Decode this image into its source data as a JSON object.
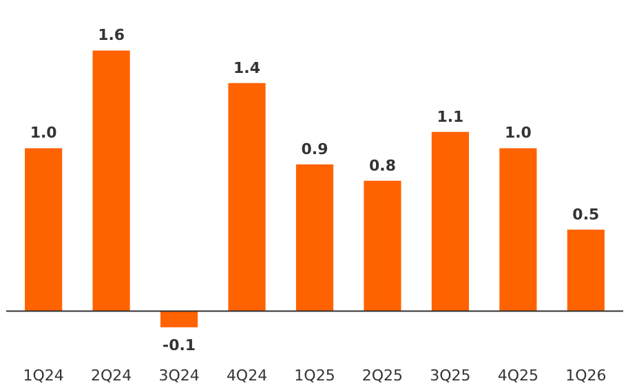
{
  "chart_data": {
    "type": "bar",
    "categories": [
      "1Q24",
      "2Q24",
      "3Q24",
      "4Q24",
      "1Q25",
      "2Q25",
      "3Q25",
      "4Q25",
      "1Q26"
    ],
    "values": [
      1.0,
      1.6,
      -0.1,
      1.4,
      0.9,
      0.8,
      1.1,
      1.0,
      0.5
    ],
    "value_labels": [
      "1.0",
      "1.6",
      "-0.1",
      "1.4",
      "0.9",
      "0.8",
      "1.1",
      "1.0",
      "0.5"
    ],
    "color": "#ff6200"
  }
}
